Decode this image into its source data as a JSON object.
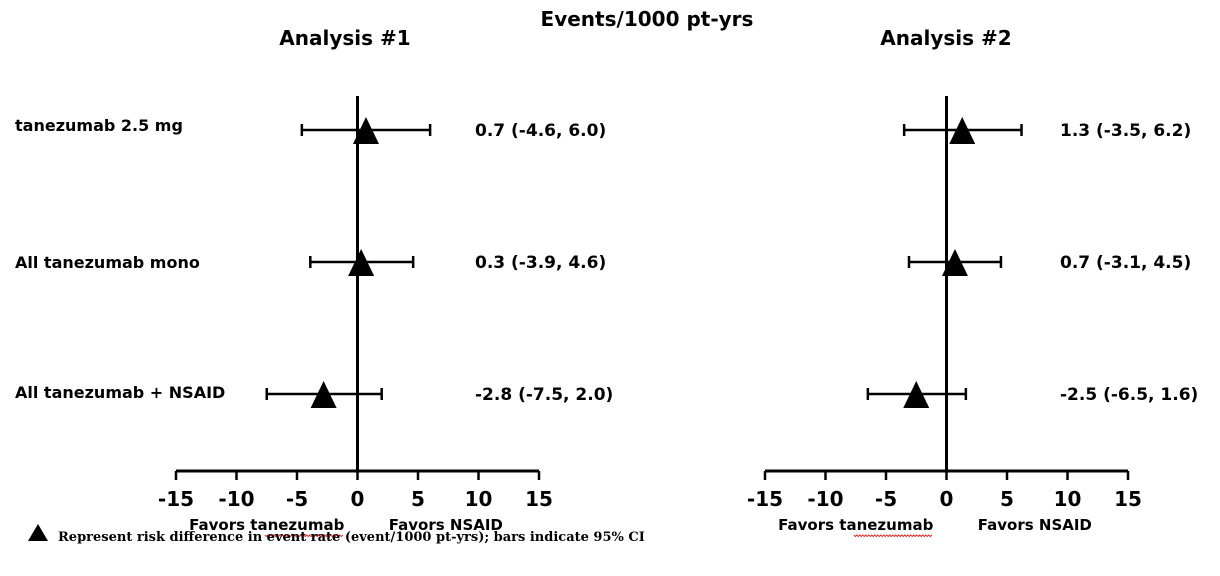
{
  "header": {
    "main_title": "Events/1000 pt-yrs"
  },
  "chart_data": [
    {
      "type": "forest",
      "title": "Analysis #1",
      "x_ticks": [
        -15,
        -10,
        -5,
        0,
        5,
        10,
        15
      ],
      "xlim": [
        -15,
        15
      ],
      "left_label": "Favors tanezumab",
      "right_label": "Favors NSAID",
      "rows": [
        {
          "label": "tanezumab 2.5 mg",
          "estimate": 0.7,
          "lower": -4.6,
          "upper": 6.0,
          "text": "0.7 (-4.6, 6.0)"
        },
        {
          "label": "All tanezumab mono",
          "estimate": 0.3,
          "lower": -3.9,
          "upper": 4.6,
          "text": "0.3 (-3.9, 4.6)"
        },
        {
          "label": "All tanezumab + NSAID",
          "estimate": -2.8,
          "lower": -7.5,
          "upper": 2.0,
          "text": "-2.8 (-7.5, 2.0)"
        }
      ]
    },
    {
      "type": "forest",
      "title": "Analysis #2",
      "x_ticks": [
        -15,
        -10,
        -5,
        0,
        5,
        10,
        15
      ],
      "xlim": [
        -15,
        15
      ],
      "left_label": "Favors tanezumab",
      "right_label": "Favors NSAID",
      "rows": [
        {
          "label": "",
          "estimate": 1.3,
          "lower": -3.5,
          "upper": 6.2,
          "text": "1.3 (-3.5, 6.2)"
        },
        {
          "label": "",
          "estimate": 0.7,
          "lower": -3.1,
          "upper": 4.5,
          "text": "0.7 (-3.1, 4.5)"
        },
        {
          "label": "",
          "estimate": -2.5,
          "lower": -6.5,
          "upper": 1.6,
          "text": "-2.5 (-6.5, 1.6)"
        }
      ]
    }
  ],
  "legend": {
    "text": "Represent risk difference  in event rate (event/1000 pt-yrs); bars indicate 95% CI",
    "marker_icon": "triangle-icon"
  },
  "colors": {
    "ink": "#000000",
    "spellcheck": "#e03030"
  }
}
